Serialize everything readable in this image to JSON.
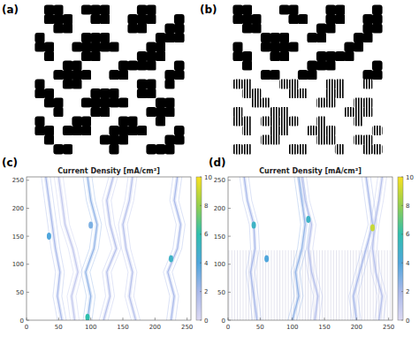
{
  "chart_data": [
    {
      "type": "image",
      "panel_label": "(a)",
      "cells": [
        [
          0,
          1,
          1,
          0,
          0,
          1,
          1,
          1,
          0,
          0,
          0,
          1,
          1,
          0,
          0,
          0
        ],
        [
          0,
          1,
          1,
          1,
          0,
          0,
          1,
          1,
          0,
          0,
          1,
          1,
          1,
          0,
          0,
          1
        ],
        [
          0,
          0,
          1,
          1,
          0,
          0,
          0,
          0,
          0,
          0,
          1,
          1,
          0,
          0,
          1,
          1
        ],
        [
          1,
          0,
          0,
          0,
          0,
          1,
          1,
          1,
          0,
          0,
          0,
          0,
          0,
          1,
          1,
          1
        ],
        [
          1,
          1,
          0,
          0,
          1,
          1,
          1,
          1,
          1,
          0,
          0,
          0,
          1,
          1,
          0,
          0
        ],
        [
          0,
          1,
          0,
          0,
          0,
          1,
          1,
          0,
          0,
          0,
          0,
          1,
          1,
          1,
          0,
          0
        ],
        [
          0,
          0,
          0,
          1,
          1,
          0,
          0,
          0,
          0,
          1,
          1,
          1,
          1,
          0,
          0,
          1
        ],
        [
          0,
          0,
          1,
          1,
          1,
          1,
          0,
          0,
          1,
          1,
          0,
          0,
          0,
          0,
          1,
          1
        ],
        [
          1,
          0,
          0,
          1,
          1,
          0,
          0,
          0,
          0,
          0,
          0,
          1,
          1,
          0,
          1,
          0
        ],
        [
          1,
          1,
          0,
          0,
          0,
          0,
          1,
          1,
          1,
          0,
          0,
          1,
          1,
          0,
          0,
          0
        ],
        [
          0,
          1,
          1,
          0,
          0,
          1,
          1,
          1,
          1,
          1,
          0,
          0,
          0,
          1,
          1,
          0
        ],
        [
          0,
          0,
          1,
          0,
          0,
          0,
          1,
          1,
          0,
          0,
          0,
          0,
          1,
          1,
          1,
          0
        ],
        [
          1,
          0,
          0,
          0,
          1,
          1,
          0,
          0,
          0,
          1,
          1,
          0,
          0,
          1,
          0,
          0
        ],
        [
          1,
          1,
          0,
          1,
          1,
          1,
          0,
          0,
          1,
          1,
          1,
          1,
          0,
          0,
          0,
          1
        ],
        [
          0,
          1,
          0,
          0,
          0,
          0,
          0,
          1,
          1,
          1,
          0,
          0,
          0,
          0,
          1,
          1
        ],
        [
          0,
          0,
          1,
          1,
          0,
          0,
          0,
          0,
          1,
          0,
          0,
          0,
          1,
          1,
          1,
          0
        ]
      ]
    },
    {
      "type": "image",
      "panel_label": "(b)",
      "cells": [
        [
          1,
          1,
          0,
          0,
          0,
          1,
          1,
          0,
          0,
          0,
          1,
          1,
          0,
          0,
          0,
          1
        ],
        [
          1,
          1,
          1,
          0,
          0,
          0,
          1,
          1,
          0,
          0,
          1,
          1,
          0,
          0,
          1,
          1
        ],
        [
          0,
          1,
          1,
          0,
          0,
          0,
          0,
          0,
          0,
          1,
          1,
          0,
          0,
          0,
          1,
          1
        ],
        [
          0,
          0,
          0,
          1,
          1,
          1,
          0,
          0,
          1,
          1,
          0,
          0,
          0,
          1,
          1,
          0
        ],
        [
          1,
          0,
          0,
          1,
          1,
          1,
          1,
          0,
          0,
          0,
          0,
          0,
          1,
          1,
          0,
          0
        ],
        [
          1,
          1,
          0,
          0,
          1,
          1,
          0,
          0,
          0,
          1,
          1,
          1,
          1,
          0,
          0,
          0
        ],
        [
          0,
          1,
          0,
          0,
          0,
          0,
          0,
          0,
          1,
          1,
          1,
          0,
          0,
          0,
          0,
          1
        ],
        [
          0,
          0,
          0,
          1,
          1,
          0,
          0,
          1,
          1,
          0,
          0,
          0,
          0,
          0,
          1,
          1
        ],
        [
          2,
          2,
          0,
          0,
          0,
          2,
          2,
          0,
          0,
          0,
          2,
          2,
          0,
          0,
          2,
          0
        ],
        [
          0,
          2,
          2,
          0,
          0,
          0,
          2,
          2,
          0,
          0,
          2,
          2,
          0,
          0,
          0,
          0
        ],
        [
          0,
          0,
          2,
          2,
          0,
          0,
          0,
          0,
          0,
          2,
          2,
          0,
          0,
          2,
          2,
          0
        ],
        [
          2,
          0,
          0,
          0,
          2,
          2,
          0,
          0,
          0,
          0,
          0,
          0,
          2,
          2,
          2,
          0
        ],
        [
          2,
          2,
          0,
          2,
          2,
          2,
          2,
          0,
          0,
          2,
          0,
          0,
          0,
          2,
          0,
          0
        ],
        [
          0,
          2,
          0,
          0,
          2,
          2,
          0,
          0,
          2,
          2,
          2,
          0,
          0,
          0,
          0,
          2
        ],
        [
          0,
          0,
          0,
          2,
          2,
          0,
          0,
          0,
          0,
          2,
          2,
          0,
          0,
          2,
          2,
          0
        ],
        [
          2,
          2,
          0,
          0,
          0,
          0,
          2,
          2,
          0,
          0,
          0,
          2,
          0,
          0,
          2,
          2
        ]
      ]
    },
    {
      "type": "streamline",
      "panel_label": "(c)",
      "title": "Current Density [mA/cm²]",
      "xlim": [
        0,
        256
      ],
      "ylim": [
        0,
        256
      ],
      "xticks": [
        0,
        50,
        100,
        150,
        200,
        250
      ],
      "yticks": [
        0,
        50,
        100,
        150,
        200,
        250
      ],
      "streamlines": [
        {
          "x": [
            55,
            48,
            52,
            45,
            40,
            35,
            30
          ],
          "y": [
            0,
            43,
            86,
            128,
            171,
            214,
            256
          ],
          "value": 2
        },
        {
          "x": [
            95,
            100,
            92,
            105,
            110,
            100,
            95
          ],
          "y": [
            0,
            43,
            86,
            128,
            171,
            214,
            256
          ],
          "value": 2.5
        },
        {
          "x": [
            120,
            130,
            125,
            140,
            130,
            125,
            135
          ],
          "y": [
            0,
            43,
            86,
            128,
            171,
            214,
            256
          ],
          "value": 1.5
        },
        {
          "x": [
            170,
            160,
            165,
            155,
            150,
            160,
            165
          ],
          "y": [
            0,
            43,
            86,
            128,
            171,
            214,
            256
          ],
          "value": 1.5
        },
        {
          "x": [
            225,
            230,
            220,
            235,
            240,
            230,
            235
          ],
          "y": [
            0,
            43,
            86,
            128,
            171,
            214,
            256
          ],
          "value": 2
        },
        {
          "x": [
            75,
            70,
            80,
            72,
            60,
            55,
            50
          ],
          "y": [
            0,
            43,
            86,
            128,
            171,
            214,
            256
          ],
          "value": 1
        }
      ],
      "hotspots": {
        "x": [
          95,
          225,
          35,
          100
        ],
        "y": [
          5,
          110,
          150,
          170
        ],
        "values": [
          6,
          5,
          4,
          3
        ]
      },
      "colorbar": {
        "range": [
          0,
          10
        ],
        "ticks": [
          0,
          2,
          4,
          6,
          8,
          10
        ]
      }
    },
    {
      "type": "streamline",
      "panel_label": "(d)",
      "title": "Current Density [mA/cm²]",
      "xlim": [
        0,
        256
      ],
      "ylim": [
        0,
        256
      ],
      "xticks": [
        0,
        50,
        100,
        150,
        200,
        250
      ],
      "yticks": [
        0,
        50,
        100,
        150,
        200,
        250
      ],
      "hatched_ylim": [
        0,
        125
      ],
      "streamlines": [
        {
          "x": [
            45,
            40,
            35,
            42,
            40,
            30,
            25
          ],
          "y": [
            0,
            43,
            86,
            128,
            171,
            214,
            256
          ],
          "value": 2
        },
        {
          "x": [
            100,
            110,
            105,
            115,
            120,
            115,
            110
          ],
          "y": [
            0,
            43,
            86,
            128,
            171,
            214,
            256
          ],
          "value": 2.5
        },
        {
          "x": [
            135,
            140,
            130,
            125,
            130,
            120,
            115
          ],
          "y": [
            0,
            43,
            86,
            128,
            171,
            214,
            256
          ],
          "value": 1.5
        },
        {
          "x": [
            200,
            195,
            205,
            215,
            225,
            220,
            215
          ],
          "y": [
            0,
            43,
            86,
            128,
            171,
            214,
            256
          ],
          "value": 2
        },
        {
          "x": [
            235,
            240,
            230,
            225,
            228,
            235,
            240
          ],
          "y": [
            0,
            43,
            86,
            128,
            171,
            214,
            256
          ],
          "value": 1.5
        }
      ],
      "hotspots": {
        "x": [
          225,
          40,
          125,
          60
        ],
        "y": [
          165,
          170,
          180,
          110
        ],
        "values": [
          9,
          5,
          5,
          4
        ]
      },
      "colorbar": {
        "range": [
          0,
          10
        ],
        "ticks": [
          0,
          2,
          4,
          6,
          8,
          10
        ]
      }
    }
  ]
}
